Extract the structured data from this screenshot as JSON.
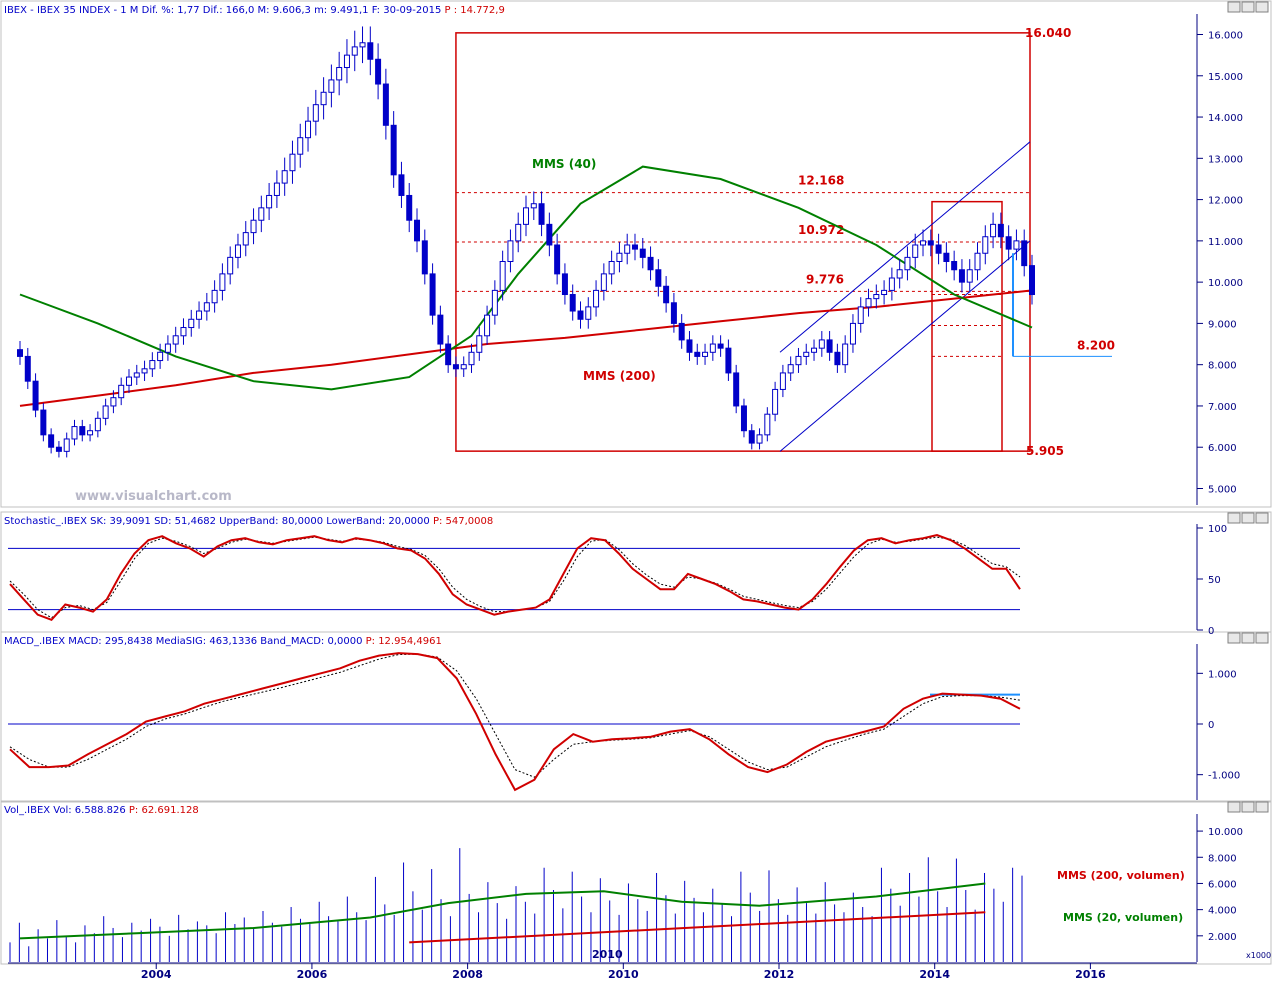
{
  "panels": {
    "main": {
      "header": [
        {
          "text": "IBEX - IBEX 35 INDEX - 1 M  Dif. %: 1,77  Dif.: 166,0  M: 9.606,3  m: 9.491,1  F: 30-09-2015",
          "color": "#0000c8"
        },
        {
          "text": " P : 14.772,9",
          "color": "#d00000"
        }
      ],
      "watermark": "www.visualchart.com",
      "yticks": [
        "16.000",
        "15.000",
        "14.000",
        "13.000",
        "12.000",
        "11.000",
        "10.000",
        "9.000",
        "8.000",
        "7.000",
        "6.000",
        "5.000"
      ],
      "labels": {
        "lvl_16040": "16.040",
        "lvl_12168": "12.168",
        "lvl_10972": "10.972",
        "lvl_9776": "9.776",
        "lvl_8200": "8.200",
        "lvl_5905": "5.905",
        "mms40": "MMS (40)",
        "mms200": "MMS (200)"
      }
    },
    "stoch": {
      "header": [
        {
          "text": "Stochastic_.IBEX SK: 39,9091  SD: 51,4682  UpperBand: 80,0000  LowerBand: 20,0000",
          "color": "#0000c8"
        },
        {
          "text": " P: 547,0008",
          "color": "#d00000"
        }
      ],
      "yticks": [
        "100",
        "50",
        "0"
      ]
    },
    "macd": {
      "header": [
        {
          "text": "MACD_.IBEX MACD: 295,8438  MediaSIG: 463,1336  Band_MACD: 0,0000",
          "color": "#0000c8"
        },
        {
          "text": " P: 12.954,4961",
          "color": "#d00000"
        }
      ],
      "yticks": [
        "1.000",
        "0",
        "-1.000"
      ]
    },
    "vol": {
      "header": [
        {
          "text": "Vol_.IBEX Vol: 6.588.826",
          "color": "#0000c8"
        },
        {
          "text": "  P: 62.691.128",
          "color": "#d00000"
        }
      ],
      "yticks": [
        "10.000",
        "8.000",
        "6.000",
        "4.000",
        "2.000"
      ],
      "unit": "x1000",
      "labels": {
        "mms200": "MMS (200, volumen)",
        "mms20": "MMS (20, volumen)"
      },
      "inner_year": "2010"
    }
  },
  "xticks": [
    "2004",
    "2006",
    "2008",
    "2010",
    "2012",
    "2014",
    "2016"
  ],
  "chart_data": [
    {
      "type": "candlestick",
      "x": "month",
      "ylim": [
        4600,
        16400
      ],
      "levels": [
        16040,
        12168,
        10972,
        9776,
        8200,
        5905
      ],
      "close": [
        8200,
        7600,
        6900,
        6300,
        6000,
        5900,
        6200,
        6500,
        6300,
        6400,
        6700,
        7000,
        7200,
        7500,
        7700,
        7800,
        7900,
        8100,
        8300,
        8500,
        8700,
        8900,
        9100,
        9300,
        9500,
        9800,
        10200,
        10600,
        10900,
        11200,
        11500,
        11800,
        12100,
        12400,
        12700,
        13100,
        13500,
        13900,
        14300,
        14600,
        14900,
        15200,
        15500,
        15700,
        15800,
        15400,
        14800,
        13800,
        12600,
        12100,
        11500,
        11000,
        10200,
        9200,
        8500,
        8000,
        7900,
        8000,
        8300,
        8700,
        9200,
        9800,
        10500,
        11000,
        11400,
        11800,
        11900,
        11400,
        10900,
        10200,
        9700,
        9300,
        9100,
        9400,
        9800,
        10200,
        10500,
        10700,
        10900,
        10800,
        10600,
        10300,
        9900,
        9500,
        9000,
        8600,
        8300,
        8200,
        8300,
        8500,
        8400,
        7800,
        7000,
        6400,
        6100,
        6300,
        6800,
        7400,
        7800,
        8000,
        8200,
        8300,
        8400,
        8600,
        8300,
        8000,
        8500,
        9000,
        9400,
        9600,
        9700,
        9800,
        10100,
        10300,
        10600,
        10900,
        11000,
        10900,
        10700,
        10500,
        10300,
        10000,
        10300,
        10700,
        11100,
        11400,
        11100,
        10800,
        11000,
        10400,
        9700
      ]
    },
    {
      "type": "line",
      "name": "MMS (40)",
      "ylim": [
        4600,
        16400
      ],
      "x": [
        0,
        10,
        20,
        30,
        40,
        50,
        58,
        64,
        72,
        80,
        90,
        100,
        110,
        120,
        130
      ],
      "values": [
        9700,
        9000,
        8200,
        7600,
        7400,
        7700,
        8700,
        10200,
        11900,
        12800,
        12500,
        11800,
        10900,
        9700,
        8900
      ]
    },
    {
      "type": "line",
      "name": "MMS (200)",
      "ylim": [
        4600,
        16400
      ],
      "x": [
        0,
        10,
        20,
        30,
        40,
        50,
        60,
        70,
        80,
        90,
        100,
        110,
        120,
        130
      ],
      "values": [
        7000,
        7250,
        7500,
        7800,
        8000,
        8250,
        8500,
        8650,
        8850,
        9050,
        9250,
        9400,
        9600,
        9800
      ]
    },
    {
      "type": "line",
      "name": "SK",
      "ylim": [
        0,
        100
      ],
      "values": [
        45,
        30,
        15,
        10,
        25,
        22,
        18,
        30,
        55,
        75,
        88,
        92,
        85,
        80,
        72,
        82,
        88,
        90,
        86,
        84,
        88,
        90,
        92,
        88,
        86,
        90,
        88,
        85,
        80,
        78,
        70,
        55,
        35,
        25,
        20,
        15,
        18,
        20,
        22,
        30,
        55,
        80,
        90,
        88,
        75,
        60,
        50,
        40,
        40,
        55,
        50,
        45,
        38,
        30,
        28,
        25,
        22,
        20,
        30,
        45,
        62,
        78,
        88,
        90,
        85,
        88,
        90,
        93,
        88,
        80,
        70,
        60,
        60,
        40
      ]
    },
    {
      "type": "line",
      "name": "SD",
      "ylim": [
        0,
        100
      ],
      "values": [
        48,
        35,
        20,
        12,
        22,
        24,
        20,
        27,
        48,
        70,
        85,
        90,
        87,
        82,
        75,
        80,
        86,
        89,
        87,
        85,
        87,
        89,
        91,
        89,
        87,
        89,
        88,
        86,
        82,
        79,
        73,
        60,
        42,
        30,
        23,
        18,
        18,
        20,
        22,
        28,
        48,
        72,
        87,
        89,
        79,
        65,
        54,
        45,
        42,
        52,
        50,
        46,
        40,
        33,
        30,
        27,
        24,
        22,
        28,
        40,
        56,
        72,
        84,
        89,
        86,
        87,
        89,
        91,
        89,
        83,
        74,
        65,
        62,
        52
      ]
    },
    {
      "type": "line",
      "name": "MACD",
      "ylim": [
        -1500,
        1500
      ],
      "values": [
        -500,
        -850,
        -850,
        -820,
        -600,
        -400,
        -200,
        50,
        150,
        250,
        400,
        500,
        600,
        700,
        800,
        900,
        1000,
        1100,
        1250,
        1350,
        1400,
        1380,
        1300,
        900,
        200,
        -600,
        -1300,
        -1100,
        -500,
        -200,
        -350,
        -300,
        -280,
        -250,
        -150,
        -100,
        -300,
        -600,
        -850,
        -950,
        -800,
        -550,
        -350,
        -250,
        -150,
        -50,
        300,
        500,
        600,
        580,
        560,
        500,
        300
      ]
    },
    {
      "type": "line",
      "name": "MediaSIG",
      "ylim": [
        -1500,
        1500
      ],
      "values": [
        -450,
        -700,
        -850,
        -850,
        -700,
        -500,
        -300,
        -50,
        100,
        200,
        330,
        450,
        540,
        630,
        720,
        820,
        920,
        1020,
        1150,
        1280,
        1370,
        1380,
        1320,
        1050,
        500,
        -200,
        -900,
        -1050,
        -700,
        -400,
        -350,
        -320,
        -300,
        -270,
        -200,
        -130,
        -250,
        -500,
        -750,
        -900,
        -850,
        -650,
        -450,
        -320,
        -200,
        -100,
        150,
        400,
        540,
        560,
        560,
        530,
        470
      ]
    },
    {
      "type": "bar",
      "name": "Vol",
      "ylim": [
        0,
        11000
      ],
      "values": [
        1500,
        3000,
        1200,
        2500,
        1800,
        3200,
        2000,
        1500,
        2800,
        2200,
        3500,
        2600,
        1900,
        3000,
        2400,
        3300,
        2700,
        2000,
        3600,
        2500,
        3100,
        2800,
        2200,
        3800,
        2900,
        3400,
        2600,
        3900,
        3000,
        2700,
        4200,
        3300,
        2900,
        4600,
        3500,
        3100,
        5000,
        3800,
        3200,
        6500,
        4400,
        3600,
        7600,
        5400,
        4000,
        7100,
        4800,
        3500,
        8700,
        5200,
        3800,
        6100,
        4500,
        3300,
        5800,
        4600,
        3700,
        7200,
        5500,
        4100,
        6900,
        5000,
        3800,
        6400,
        4700,
        3600,
        6000,
        4800,
        3900,
        6800,
        5100,
        3700,
        6200,
        4900,
        3800,
        5600,
        4400,
        3500,
        6900,
        5300,
        3900,
        7000,
        4800,
        3600,
        5700,
        4500,
        3700,
        6100,
        4400,
        3800,
        5300,
        4200,
        3500,
        7200,
        5600,
        4300,
        6800,
        5000,
        8000,
        5400,
        4200,
        7900,
        5500,
        4000,
        6800,
        5600,
        4600,
        7200,
        6600
      ]
    },
    {
      "type": "line",
      "name": "MMS (20, volumen)",
      "ylim": [
        0,
        11000
      ],
      "x": [
        0,
        15,
        30,
        45,
        55,
        65,
        75,
        85,
        95,
        110,
        124
      ],
      "values": [
        1800,
        2200,
        2600,
        3400,
        4500,
        5200,
        5400,
        4600,
        4300,
        5000,
        6000
      ]
    },
    {
      "type": "line",
      "name": "MMS (200, volumen)",
      "ylim": [
        0,
        11000
      ],
      "x": [
        50,
        124
      ],
      "values": [
        1500,
        3800
      ]
    }
  ]
}
